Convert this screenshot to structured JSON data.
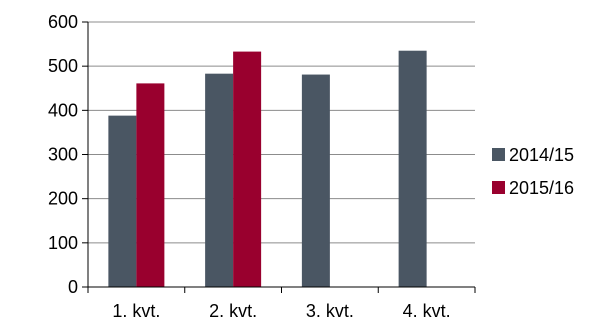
{
  "chart_data": {
    "type": "bar",
    "categories": [
      "1. kvt.",
      "2. kvt.",
      "3. kvt.",
      "4. kvt."
    ],
    "series": [
      {
        "name": "2014/15",
        "color": "#4a5663",
        "values": [
          388,
          483,
          481,
          535
        ]
      },
      {
        "name": "2015/16",
        "color": "#99002e",
        "values": [
          461,
          533,
          null,
          null
        ]
      }
    ],
    "ylim": [
      0,
      600
    ],
    "yticks": [
      0,
      100,
      200,
      300,
      400,
      500,
      600
    ],
    "ytick_labels": [
      "0",
      "100",
      "200",
      "300",
      "400",
      "500",
      "600"
    ],
    "grid": true,
    "legend_position": "right",
    "title": "",
    "xlabel": "",
    "ylabel": ""
  }
}
